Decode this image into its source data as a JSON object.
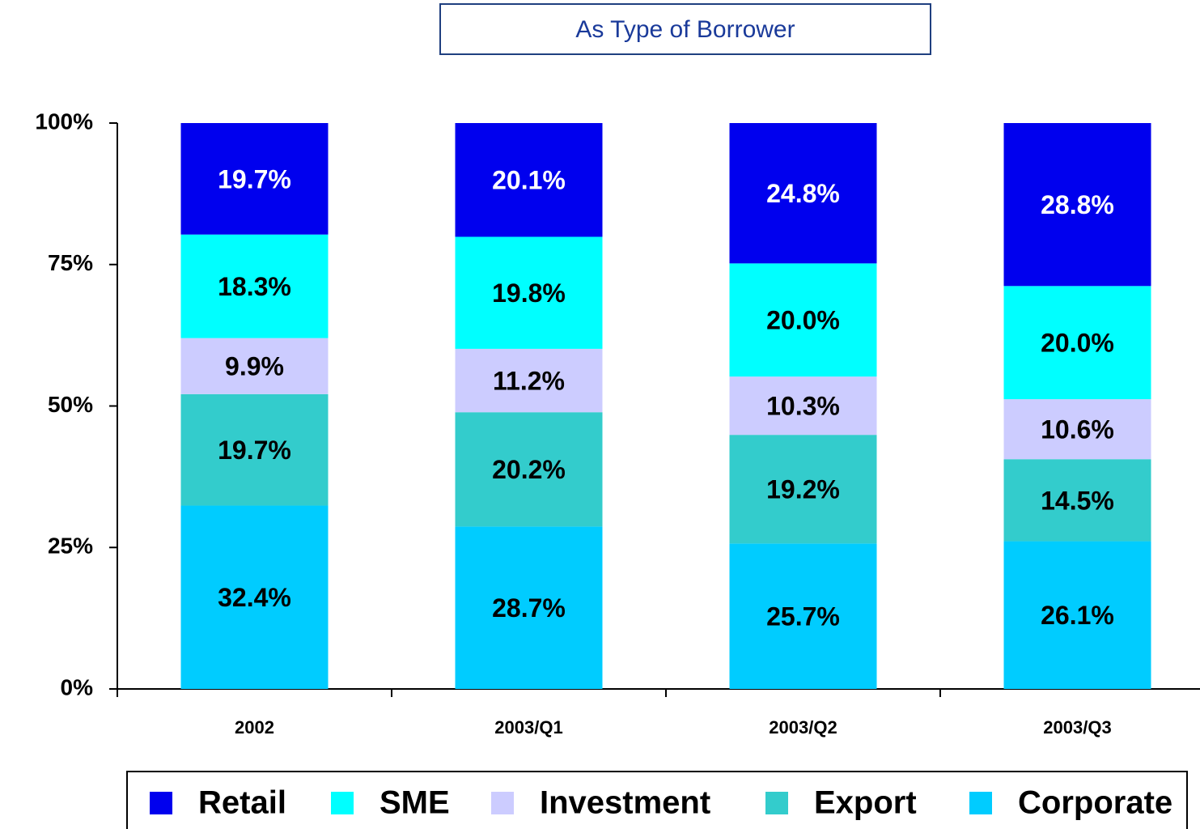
{
  "chart_data": {
    "type": "stacked_bar",
    "title": "As Type of Borrower",
    "categories": [
      "2002",
      "2003/Q1",
      "2003/Q2",
      "2003/Q3"
    ],
    "series": [
      {
        "name": "Retail",
        "color": "#0000ee",
        "label_color": "#ffffff",
        "values": [
          19.7,
          20.1,
          24.8,
          28.8
        ],
        "value_labels": [
          "19.7%",
          "20.1%",
          "24.8%",
          "28.8%"
        ]
      },
      {
        "name": "SME",
        "color": "#00ffff",
        "label_color": "#000000",
        "values": [
          18.3,
          19.8,
          20.0,
          20.0
        ],
        "value_labels": [
          "18.3%",
          "19.8%",
          "20.0%",
          "20.0%"
        ]
      },
      {
        "name": "Investment",
        "color": "#ccccff",
        "label_color": "#000000",
        "values": [
          9.9,
          11.2,
          10.3,
          10.6
        ],
        "value_labels": [
          "9.9%",
          "11.2%",
          "10.3%",
          "10.6%"
        ]
      },
      {
        "name": "Export",
        "color": "#33cccc",
        "label_color": "#000000",
        "values": [
          19.7,
          20.2,
          19.2,
          14.5
        ],
        "value_labels": [
          "19.7%",
          "20.2%",
          "19.2%",
          "14.5%"
        ]
      },
      {
        "name": "Corporate",
        "color": "#00ccff",
        "label_color": "#000000",
        "values": [
          32.4,
          28.7,
          25.7,
          26.1
        ],
        "value_labels": [
          "32.4%",
          "28.7%",
          "25.7%",
          "26.1%"
        ]
      }
    ],
    "ylim": [
      0,
      100
    ],
    "yticks": [
      {
        "value": 0,
        "label": "0%"
      },
      {
        "value": 25,
        "label": "25%"
      },
      {
        "value": 50,
        "label": "50%"
      },
      {
        "value": 75,
        "label": "75%"
      },
      {
        "value": 100,
        "label": "100%"
      }
    ],
    "legend": "bottom"
  }
}
